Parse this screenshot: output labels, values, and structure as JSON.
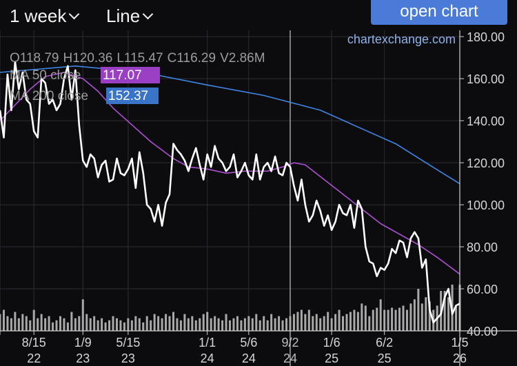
{
  "toolbar": {
    "interval": "1 week",
    "chart_type": "Line",
    "open_chart_label": "open chart"
  },
  "watermark": "chartexchange.com",
  "ohlcv": {
    "o": "O",
    "o_val": "118.79",
    "h": "H",
    "h_val": "120.36",
    "l": "L",
    "l_val": "115.47",
    "c": "C",
    "c_val": "116.29",
    "v": "V",
    "v_val": "2.86M"
  },
  "indicators": [
    {
      "label": "MA 50 close",
      "value": "117.07",
      "color": "#9a3fc4"
    },
    {
      "label": "MA 200 close",
      "value": "152.37",
      "color": "#3a74c9"
    }
  ],
  "colors": {
    "price": "#ffffff",
    "ma50": "#b04fd6",
    "ma200": "#3f86e6",
    "volume": "#a9a9a9",
    "grid": "#2c2c34",
    "background": "#0c0c0f",
    "crosshair": "#c8c8c8"
  },
  "chart_data": {
    "type": "line",
    "x_range": [
      0,
      122
    ],
    "ylim": [
      40,
      183
    ],
    "y_ticks": [
      "180.00",
      "160.00",
      "140.00",
      "120.00",
      "100.00",
      "80.00",
      "60.00",
      "40.00"
    ],
    "y_tick_values": [
      180,
      160,
      140,
      120,
      100,
      80,
      60,
      40
    ],
    "x_ticks": [
      {
        "x": 0,
        "l1": "",
        "l2": ""
      },
      {
        "x": 9,
        "l1": "8/15",
        "l2": "22"
      },
      {
        "x": 22,
        "l1": "1/9",
        "l2": "23"
      },
      {
        "x": 34,
        "l1": "5/15",
        "l2": "23"
      },
      {
        "x": 55,
        "l1": "1/1",
        "l2": "24"
      },
      {
        "x": 66,
        "l1": "5/6",
        "l2": "24"
      },
      {
        "x": 77,
        "l1": "9/2",
        "l2": "24"
      },
      {
        "x": 88,
        "l1": "1/6",
        "l2": "25"
      },
      {
        "x": 102,
        "l1": "6/2",
        "l2": "25"
      },
      {
        "x": 122,
        "l1": "1/5",
        "l2": "26"
      }
    ],
    "crosshair_x": 77,
    "series": [
      {
        "name": "MA 200 close",
        "x": [
          0,
          20,
          38,
          55,
          70,
          85,
          95,
          105,
          113,
          122
        ],
        "values": [
          163,
          166,
          163,
          157,
          152,
          145,
          137,
          129,
          120,
          110
        ]
      },
      {
        "name": "MA 50 close",
        "x": [
          0,
          8,
          12,
          17,
          22,
          26,
          30,
          35,
          40,
          46,
          50,
          55,
          60,
          65,
          71,
          75,
          78,
          81,
          86,
          91,
          96,
          101,
          106,
          111,
          116,
          122
        ],
        "values": [
          140,
          155,
          161,
          163,
          160,
          154,
          146,
          138,
          130,
          122,
          118,
          117,
          115,
          116,
          116,
          118,
          120,
          119,
          112,
          105,
          98,
          91,
          86,
          81,
          75,
          67
        ]
      },
      {
        "name": "",
        "x": [
          0,
          1,
          2,
          3,
          4,
          5,
          6,
          7,
          8,
          9,
          10,
          11,
          12,
          13,
          14,
          15,
          16,
          17,
          18,
          19,
          20,
          21,
          22,
          23,
          24,
          25,
          26,
          27,
          28,
          29,
          30,
          31,
          32,
          33,
          34,
          35,
          36,
          37,
          38,
          39,
          40,
          41,
          42,
          43,
          44,
          45,
          46,
          47,
          48,
          49,
          50,
          51,
          52,
          53,
          54,
          55,
          56,
          57,
          58,
          59,
          60,
          61,
          62,
          63,
          64,
          65,
          66,
          67,
          68,
          69,
          70,
          71,
          72,
          73,
          74,
          75,
          76,
          77,
          78,
          79,
          80,
          81,
          82,
          83,
          84,
          85,
          86,
          87,
          88,
          89,
          90,
          91,
          92,
          93,
          94,
          95,
          96,
          97,
          98,
          99,
          100,
          101,
          102,
          103,
          104,
          105,
          106,
          107,
          108,
          109,
          110,
          111,
          112,
          113,
          114,
          115,
          116,
          117,
          118,
          119,
          120,
          121,
          122
        ],
        "values": [
          145,
          132,
          162,
          145,
          168,
          155,
          163,
          150,
          148,
          135,
          132,
          160,
          158,
          148,
          150,
          145,
          148,
          160,
          166,
          150,
          164,
          138,
          121,
          118,
          124,
          122,
          113,
          119,
          121,
          111,
          112,
          122,
          115,
          114,
          117,
          122,
          108,
          125,
          115,
          100,
          98,
          92,
          100,
          90,
          101,
          105,
          129,
          126,
          124,
          121,
          116,
          122,
          127,
          119,
          112,
          124,
          118,
          128,
          122,
          120,
          116,
          118,
          124,
          113,
          116,
          120,
          114,
          112,
          124,
          112,
          118,
          120,
          116,
          123,
          115,
          114,
          120,
          118,
          109,
          102,
          112,
          100,
          92,
          95,
          102,
          97,
          90,
          95,
          88,
          92,
          100,
          96,
          95,
          100,
          89,
          102,
          98,
          80,
          73,
          72,
          66,
          70,
          69,
          72,
          79,
          77,
          83,
          82,
          75,
          84,
          87,
          84,
          70,
          74,
          50,
          44,
          46,
          48,
          56,
          60,
          48,
          52,
          53
        ]
      },
      {
        "name": "volume",
        "x": [
          0,
          1,
          2,
          3,
          4,
          5,
          6,
          7,
          8,
          9,
          10,
          11,
          12,
          13,
          14,
          15,
          16,
          17,
          18,
          19,
          20,
          21,
          22,
          23,
          24,
          25,
          26,
          27,
          28,
          29,
          30,
          31,
          32,
          33,
          34,
          35,
          36,
          37,
          38,
          39,
          40,
          41,
          42,
          43,
          44,
          45,
          46,
          47,
          48,
          49,
          50,
          51,
          52,
          53,
          54,
          55,
          56,
          57,
          58,
          59,
          60,
          61,
          62,
          63,
          64,
          65,
          66,
          67,
          68,
          69,
          70,
          71,
          72,
          73,
          74,
          75,
          76,
          77,
          78,
          79,
          80,
          81,
          82,
          83,
          84,
          85,
          86,
          87,
          88,
          89,
          90,
          91,
          92,
          93,
          94,
          95,
          96,
          97,
          98,
          99,
          100,
          101,
          102,
          103,
          104,
          105,
          106,
          107,
          108,
          109,
          110,
          111,
          112,
          113,
          114,
          115,
          116,
          117,
          118,
          119,
          120,
          121,
          122
        ],
        "values": [
          48,
          50,
          47,
          46,
          49,
          46,
          48,
          47,
          45,
          50,
          46,
          48,
          46,
          47,
          44,
          45,
          47,
          46,
          44,
          49,
          46,
          47,
          55,
          48,
          46,
          47,
          45,
          46,
          44,
          45,
          47,
          46,
          45,
          44,
          46,
          45,
          47,
          46,
          44,
          47,
          45,
          48,
          47,
          46,
          48,
          47,
          49,
          46,
          45,
          48,
          46,
          47,
          45,
          46,
          48,
          49,
          46,
          47,
          46,
          45,
          48,
          45,
          46,
          47,
          45,
          46,
          47,
          46,
          48,
          45,
          47,
          45,
          48,
          46,
          47,
          45,
          46,
          47,
          48,
          49,
          50,
          48,
          50,
          47,
          48,
          46,
          47,
          49,
          46,
          48,
          50,
          47,
          48,
          49,
          50,
          49,
          53,
          52,
          47,
          50,
          51,
          55,
          50,
          50,
          51,
          50,
          51,
          52,
          50,
          53,
          55,
          60,
          53,
          56,
          54,
          50,
          52,
          59,
          59,
          56,
          62,
          52,
          62
        ]
      }
    ]
  }
}
